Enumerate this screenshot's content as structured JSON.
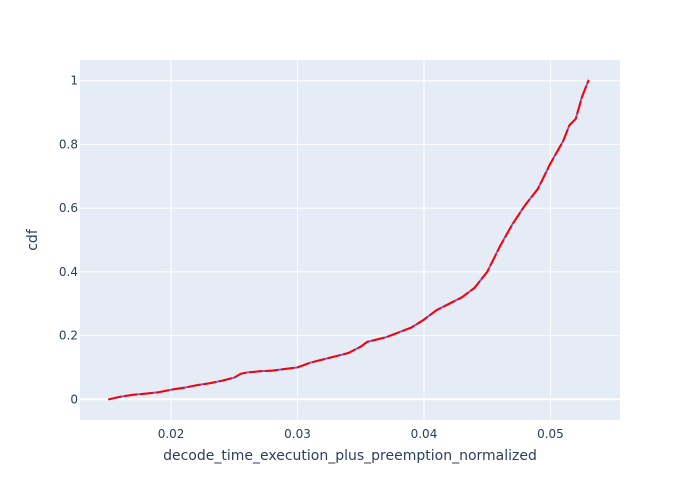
{
  "chart_data": {
    "type": "line",
    "title": "",
    "xlabel": "decode_time_execution_plus_preemption_normalized",
    "ylabel": "cdf",
    "xlim": [
      0.0128,
      0.0555
    ],
    "ylim": [
      -0.065,
      1.065
    ],
    "x_ticks": [
      0.02,
      0.03,
      0.04,
      0.05
    ],
    "x_tick_labels": [
      "0.02",
      "0.03",
      "0.04",
      "0.05"
    ],
    "y_ticks": [
      0,
      0.2,
      0.4,
      0.6,
      0.8,
      1
    ],
    "y_tick_labels": [
      "0",
      "0.2",
      "0.4",
      "0.6",
      "0.8",
      "1"
    ],
    "grid": true,
    "legend": "none",
    "colors": {
      "plot_bg": "#e5ecf6",
      "grid": "#ffffff",
      "series_a": "#636efa",
      "series_b": "#ff0000",
      "text": "#2a3f5f"
    },
    "series": [
      {
        "style": "solid",
        "color": "#636efa",
        "x": [
          0.0151,
          0.016,
          0.017,
          0.018,
          0.019,
          0.02,
          0.021,
          0.022,
          0.023,
          0.024,
          0.025,
          0.0255,
          0.026,
          0.027,
          0.028,
          0.029,
          0.03,
          0.031,
          0.032,
          0.033,
          0.034,
          0.035,
          0.0355,
          0.036,
          0.037,
          0.038,
          0.039,
          0.04,
          0.041,
          0.042,
          0.043,
          0.044,
          0.045,
          0.046,
          0.047,
          0.048,
          0.049,
          0.05,
          0.051,
          0.0515,
          0.052,
          0.0525,
          0.053
        ],
        "y": [
          0.0,
          0.008,
          0.014,
          0.018,
          0.022,
          0.03,
          0.036,
          0.044,
          0.05,
          0.058,
          0.068,
          0.08,
          0.084,
          0.088,
          0.09,
          0.095,
          0.1,
          0.115,
          0.125,
          0.135,
          0.145,
          0.165,
          0.18,
          0.185,
          0.195,
          0.21,
          0.225,
          0.25,
          0.28,
          0.3,
          0.32,
          0.35,
          0.4,
          0.48,
          0.55,
          0.61,
          0.66,
          0.74,
          0.81,
          0.86,
          0.88,
          0.95,
          1.0
        ]
      },
      {
        "style": "dashed",
        "color": "#ff0000",
        "x": [
          0.0151,
          0.016,
          0.017,
          0.018,
          0.019,
          0.02,
          0.021,
          0.022,
          0.023,
          0.024,
          0.025,
          0.0255,
          0.026,
          0.027,
          0.028,
          0.029,
          0.03,
          0.031,
          0.032,
          0.033,
          0.034,
          0.035,
          0.0355,
          0.036,
          0.037,
          0.038,
          0.039,
          0.04,
          0.041,
          0.042,
          0.043,
          0.044,
          0.045,
          0.046,
          0.047,
          0.048,
          0.049,
          0.05,
          0.051,
          0.0515,
          0.052,
          0.0525,
          0.053
        ],
        "y": [
          0.0,
          0.008,
          0.014,
          0.018,
          0.022,
          0.03,
          0.036,
          0.044,
          0.05,
          0.058,
          0.068,
          0.08,
          0.084,
          0.088,
          0.09,
          0.095,
          0.1,
          0.115,
          0.125,
          0.135,
          0.145,
          0.165,
          0.18,
          0.185,
          0.195,
          0.21,
          0.225,
          0.25,
          0.28,
          0.3,
          0.32,
          0.35,
          0.4,
          0.48,
          0.55,
          0.61,
          0.66,
          0.74,
          0.81,
          0.86,
          0.88,
          0.95,
          1.0
        ]
      }
    ]
  }
}
